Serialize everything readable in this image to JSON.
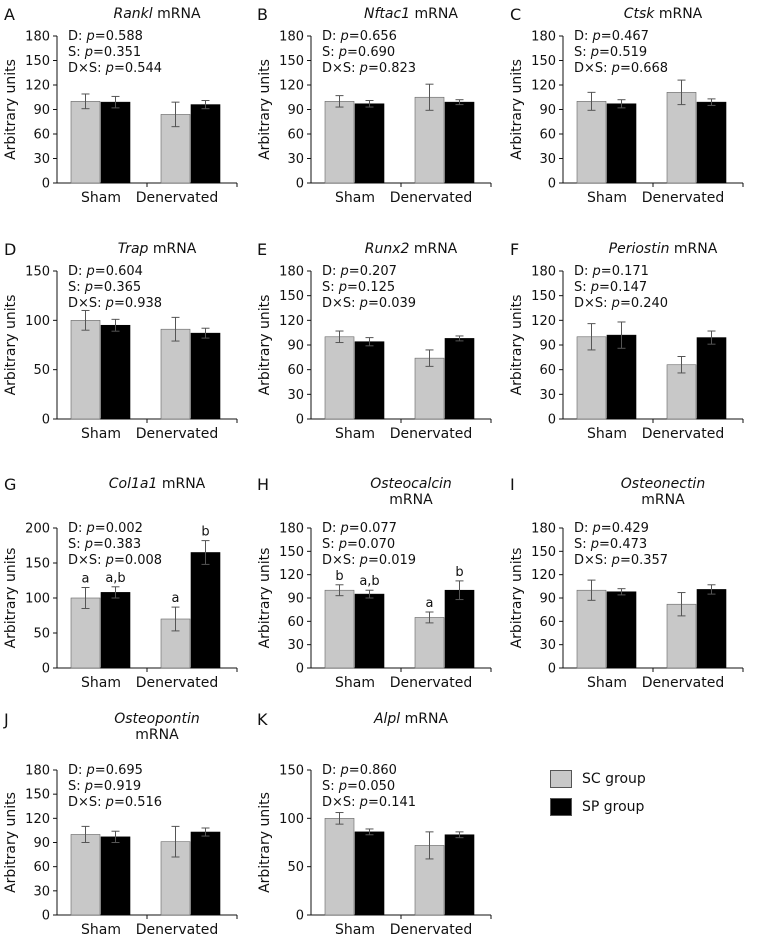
{
  "colors": {
    "sc": "#c8c8c8",
    "sp": "#000000",
    "axis": "#111111",
    "text": "#111111"
  },
  "legend": [
    {
      "name": "sc",
      "label": "SC group"
    },
    {
      "name": "sp",
      "label": "SP group"
    }
  ],
  "chart_data": [
    {
      "panel": "A",
      "type": "bar",
      "title": [
        {
          "text": "Rankl",
          "italic": true
        },
        {
          "text": " mRNA",
          "italic": false
        }
      ],
      "ylabel": "Arbitrary units",
      "categories": [
        "Sham",
        "Denervated"
      ],
      "series": [
        {
          "name": "SC group",
          "values": [
            100,
            84
          ],
          "errors": [
            9,
            15
          ],
          "letters": [
            null,
            null
          ]
        },
        {
          "name": "SP group",
          "values": [
            99,
            96
          ],
          "errors": [
            7,
            5
          ],
          "letters": [
            null,
            null
          ]
        }
      ],
      "ylim": [
        0,
        180
      ],
      "yticks": [
        "0",
        "30",
        "60",
        "90",
        "120",
        "150",
        "180"
      ],
      "stats": [
        {
          "label": "D: ",
          "p": "p",
          "value": "=0.588"
        },
        {
          "label": "S: ",
          "p": "p",
          "value": "=0.351"
        },
        {
          "label": "D×S: ",
          "p": "p",
          "value": "=0.544"
        }
      ]
    },
    {
      "panel": "B",
      "type": "bar",
      "title": [
        {
          "text": "Nftac1",
          "italic": true
        },
        {
          "text": " mRNA",
          "italic": false
        }
      ],
      "ylabel": "Arbitrary units",
      "categories": [
        "Sham",
        "Denervated"
      ],
      "series": [
        {
          "name": "SC group",
          "values": [
            100,
            105
          ],
          "errors": [
            7,
            16
          ],
          "letters": [
            null,
            null
          ]
        },
        {
          "name": "SP group",
          "values": [
            97,
            99
          ],
          "errors": [
            4,
            3
          ],
          "letters": [
            null,
            null
          ]
        }
      ],
      "ylim": [
        0,
        180
      ],
      "yticks": [
        "0",
        "30",
        "60",
        "90",
        "120",
        "150",
        "180"
      ],
      "stats": [
        {
          "label": "D: ",
          "p": "p",
          "value": "=0.656"
        },
        {
          "label": "S: ",
          "p": "p",
          "value": "=0.690"
        },
        {
          "label": "D×S: ",
          "p": "p",
          "value": "=0.823"
        }
      ]
    },
    {
      "panel": "C",
      "type": "bar",
      "title": [
        {
          "text": "Ctsk",
          "italic": true
        },
        {
          "text": " mRNA",
          "italic": false
        }
      ],
      "ylabel": "Arbitrary units",
      "categories": [
        "Sham",
        "Denervated"
      ],
      "series": [
        {
          "name": "SC group",
          "values": [
            100,
            111
          ],
          "errors": [
            11,
            15
          ],
          "letters": [
            null,
            null
          ]
        },
        {
          "name": "SP group",
          "values": [
            97,
            99
          ],
          "errors": [
            5,
            4
          ],
          "letters": [
            null,
            null
          ]
        }
      ],
      "ylim": [
        0,
        180
      ],
      "yticks": [
        "0",
        "30",
        "60",
        "90",
        "120",
        "150",
        "180"
      ],
      "stats": [
        {
          "label": "D: ",
          "p": "p",
          "value": "=0.467"
        },
        {
          "label": "S: ",
          "p": "p",
          "value": "=0.519"
        },
        {
          "label": "D×S: ",
          "p": "p",
          "value": "=0.668"
        }
      ]
    },
    {
      "panel": "D",
      "type": "bar",
      "title": [
        {
          "text": "Trap",
          "italic": true
        },
        {
          "text": " mRNA",
          "italic": false
        }
      ],
      "ylabel": "Arbitrary units",
      "categories": [
        "Sham",
        "Denervated"
      ],
      "series": [
        {
          "name": "SC group",
          "values": [
            100,
            91
          ],
          "errors": [
            10,
            12
          ],
          "letters": [
            null,
            null
          ]
        },
        {
          "name": "SP group",
          "values": [
            95,
            87
          ],
          "errors": [
            6,
            5
          ],
          "letters": [
            null,
            null
          ]
        }
      ],
      "ylim": [
        0,
        150
      ],
      "yticks": [
        "0",
        "50",
        "100",
        "150"
      ],
      "stats": [
        {
          "label": "D: ",
          "p": "p",
          "value": "=0.604"
        },
        {
          "label": "S: ",
          "p": "p",
          "value": "=0.365"
        },
        {
          "label": "D×S: ",
          "p": "p",
          "value": "=0.938"
        }
      ]
    },
    {
      "panel": "E",
      "type": "bar",
      "title": [
        {
          "text": "Runx2",
          "italic": true
        },
        {
          "text": " mRNA",
          "italic": false
        }
      ],
      "ylabel": "Arbitrary units",
      "categories": [
        "Sham",
        "Denervated"
      ],
      "series": [
        {
          "name": "SC group",
          "values": [
            100,
            74
          ],
          "errors": [
            7,
            10
          ],
          "letters": [
            null,
            null
          ]
        },
        {
          "name": "SP group",
          "values": [
            94,
            98
          ],
          "errors": [
            5,
            3
          ],
          "letters": [
            null,
            null
          ]
        }
      ],
      "ylim": [
        0,
        180
      ],
      "yticks": [
        "0",
        "30",
        "60",
        "90",
        "120",
        "150",
        "180"
      ],
      "stats": [
        {
          "label": "D: ",
          "p": "p",
          "value": "=0.207"
        },
        {
          "label": "S: ",
          "p": "p",
          "value": "=0.125"
        },
        {
          "label": "D×S: ",
          "p": "p",
          "value": "=0.039"
        }
      ]
    },
    {
      "panel": "F",
      "type": "bar",
      "title": [
        {
          "text": "Periostin",
          "italic": true
        },
        {
          "text": " mRNA",
          "italic": false
        }
      ],
      "ylabel": "Arbitrary units",
      "categories": [
        "Sham",
        "Denervated"
      ],
      "series": [
        {
          "name": "SC group",
          "values": [
            100,
            66
          ],
          "errors": [
            16,
            10
          ],
          "letters": [
            null,
            null
          ]
        },
        {
          "name": "SP group",
          "values": [
            102,
            99
          ],
          "errors": [
            16,
            8
          ],
          "letters": [
            null,
            null
          ]
        }
      ],
      "ylim": [
        0,
        180
      ],
      "yticks": [
        "0",
        "30",
        "60",
        "90",
        "120",
        "150",
        "180"
      ],
      "stats": [
        {
          "label": "D: ",
          "p": "p",
          "value": "=0.171"
        },
        {
          "label": "S: ",
          "p": "p",
          "value": "=0.147"
        },
        {
          "label": "D×S: ",
          "p": "p",
          "value": "=0.240"
        }
      ]
    },
    {
      "panel": "G",
      "type": "bar",
      "title": [
        {
          "text": "Col1a1",
          "italic": true
        },
        {
          "text": " mRNA",
          "italic": false
        }
      ],
      "ylabel": "Arbitrary units",
      "categories": [
        "Sham",
        "Denervated"
      ],
      "series": [
        {
          "name": "SC group",
          "values": [
            100,
            70
          ],
          "errors": [
            15,
            17
          ],
          "letters": [
            "a",
            "a"
          ]
        },
        {
          "name": "SP group",
          "values": [
            108,
            165
          ],
          "errors": [
            8,
            17
          ],
          "letters": [
            "a,b",
            "b"
          ]
        }
      ],
      "ylim": [
        0,
        200
      ],
      "yticks": [
        "0",
        "50",
        "100",
        "150",
        "200"
      ],
      "stats": [
        {
          "label": "D: ",
          "p": "p",
          "value": "=0.002"
        },
        {
          "label": "S: ",
          "p": "p",
          "value": "=0.383"
        },
        {
          "label": "D×S: ",
          "p": "p",
          "value": "=0.008"
        }
      ]
    },
    {
      "panel": "H",
      "type": "bar",
      "title": [
        {
          "text": "Osteocalcin",
          "italic": true
        },
        {
          "text": "mRNA",
          "italic": false
        }
      ],
      "title_lines": 2,
      "ylabel": "Arbitrary units",
      "categories": [
        "Sham",
        "Denervated"
      ],
      "series": [
        {
          "name": "SC group",
          "values": [
            100,
            65
          ],
          "errors": [
            7,
            7
          ],
          "letters": [
            "b",
            "a"
          ]
        },
        {
          "name": "SP group",
          "values": [
            95,
            100
          ],
          "errors": [
            5,
            12
          ],
          "letters": [
            "a,b",
            "b"
          ]
        }
      ],
      "ylim": [
        0,
        180
      ],
      "yticks": [
        "0",
        "30",
        "60",
        "90",
        "120",
        "150",
        "180"
      ],
      "stats": [
        {
          "label": "D: ",
          "p": "p",
          "value": "=0.077"
        },
        {
          "label": "S: ",
          "p": "p",
          "value": "=0.070"
        },
        {
          "label": "D×S: ",
          "p": "p",
          "value": "=0.019"
        }
      ]
    },
    {
      "panel": "I",
      "type": "bar",
      "title": [
        {
          "text": "Osteonectin",
          "italic": true
        },
        {
          "text": "mRNA",
          "italic": false
        }
      ],
      "title_lines": 2,
      "ylabel": "Arbitrary units",
      "categories": [
        "Sham",
        "Denervated"
      ],
      "series": [
        {
          "name": "SC group",
          "values": [
            100,
            82
          ],
          "errors": [
            13,
            15
          ],
          "letters": [
            null,
            null
          ]
        },
        {
          "name": "SP group",
          "values": [
            98,
            101
          ],
          "errors": [
            4,
            6
          ],
          "letters": [
            null,
            null
          ]
        }
      ],
      "ylim": [
        0,
        180
      ],
      "yticks": [
        "0",
        "30",
        "60",
        "90",
        "120",
        "150",
        "180"
      ],
      "stats": [
        {
          "label": "D: ",
          "p": "p",
          "value": "=0.429"
        },
        {
          "label": "S: ",
          "p": "p",
          "value": "=0.473"
        },
        {
          "label": "D×S: ",
          "p": "p",
          "value": "=0.357"
        }
      ]
    },
    {
      "panel": "J",
      "type": "bar",
      "title": [
        {
          "text": "Osteopontin",
          "italic": true
        },
        {
          "text": "mRNA",
          "italic": false
        }
      ],
      "title_lines": 2,
      "ylabel": "Arbitrary units",
      "categories": [
        "Sham",
        "Denervated"
      ],
      "series": [
        {
          "name": "SC group",
          "values": [
            100,
            91
          ],
          "errors": [
            10,
            19
          ],
          "letters": [
            null,
            null
          ]
        },
        {
          "name": "SP group",
          "values": [
            97,
            103
          ],
          "errors": [
            7,
            5
          ],
          "letters": [
            null,
            null
          ]
        }
      ],
      "ylim": [
        0,
        180
      ],
      "yticks": [
        "0",
        "30",
        "60",
        "90",
        "120",
        "150",
        "180"
      ],
      "stats": [
        {
          "label": "D: ",
          "p": "p",
          "value": "=0.695"
        },
        {
          "label": "S: ",
          "p": "p",
          "value": "=0.919"
        },
        {
          "label": "D×S: ",
          "p": "p",
          "value": "=0.516"
        }
      ]
    },
    {
      "panel": "K",
      "type": "bar",
      "title": [
        {
          "text": "Alpl",
          "italic": true
        },
        {
          "text": " mRNA",
          "italic": false
        }
      ],
      "ylabel": "Arbitrary units",
      "categories": [
        "Sham",
        "Denervated"
      ],
      "series": [
        {
          "name": "SC group",
          "values": [
            100,
            72
          ],
          "errors": [
            6,
            14
          ],
          "letters": [
            null,
            null
          ]
        },
        {
          "name": "SP group",
          "values": [
            86,
            83
          ],
          "errors": [
            3,
            3
          ],
          "letters": [
            null,
            null
          ]
        }
      ],
      "ylim": [
        0,
        150
      ],
      "yticks": [
        "0",
        "50",
        "100",
        "150"
      ],
      "stats": [
        {
          "label": "D: ",
          "p": "p",
          "value": "=0.860"
        },
        {
          "label": "S: ",
          "p": "p",
          "value": "=0.050"
        },
        {
          "label": "D×S: ",
          "p": "p",
          "value": "=0.141"
        }
      ]
    }
  ]
}
